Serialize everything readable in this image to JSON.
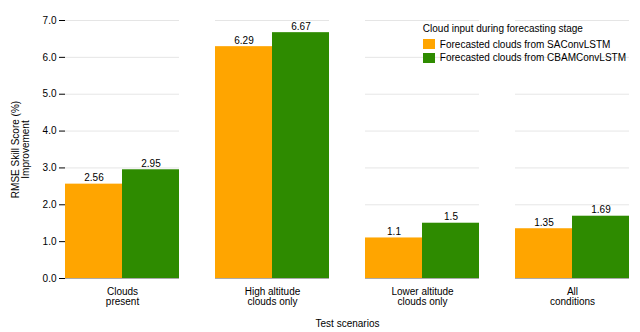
{
  "chart_data": {
    "type": "bar",
    "categories": [
      "Clouds\npresent",
      "High altitude\nclouds only",
      "Lower altitude\nclouds only",
      "All\nconditions"
    ],
    "series": [
      {
        "name": "Forecasted clouds from SAConvLSTM",
        "color": "#FFA500",
        "values": [
          2.56,
          6.29,
          1.1,
          1.35
        ]
      },
      {
        "name": "Forecasted clouds from CBAMConvLSTM",
        "color": "#2E8B00",
        "values": [
          2.95,
          6.67,
          1.5,
          1.69
        ]
      }
    ],
    "xlabel": "Test scenarios",
    "ylabel": "RMSE Skill Score (%)\nImprovement",
    "legend_title": "Cloud input during forecasting stage",
    "legend": "upper right",
    "ylim": [
      0,
      7
    ],
    "yticks": [
      0,
      1,
      2,
      3,
      4,
      5,
      6,
      7
    ],
    "grid": true,
    "data_labels": true
  }
}
